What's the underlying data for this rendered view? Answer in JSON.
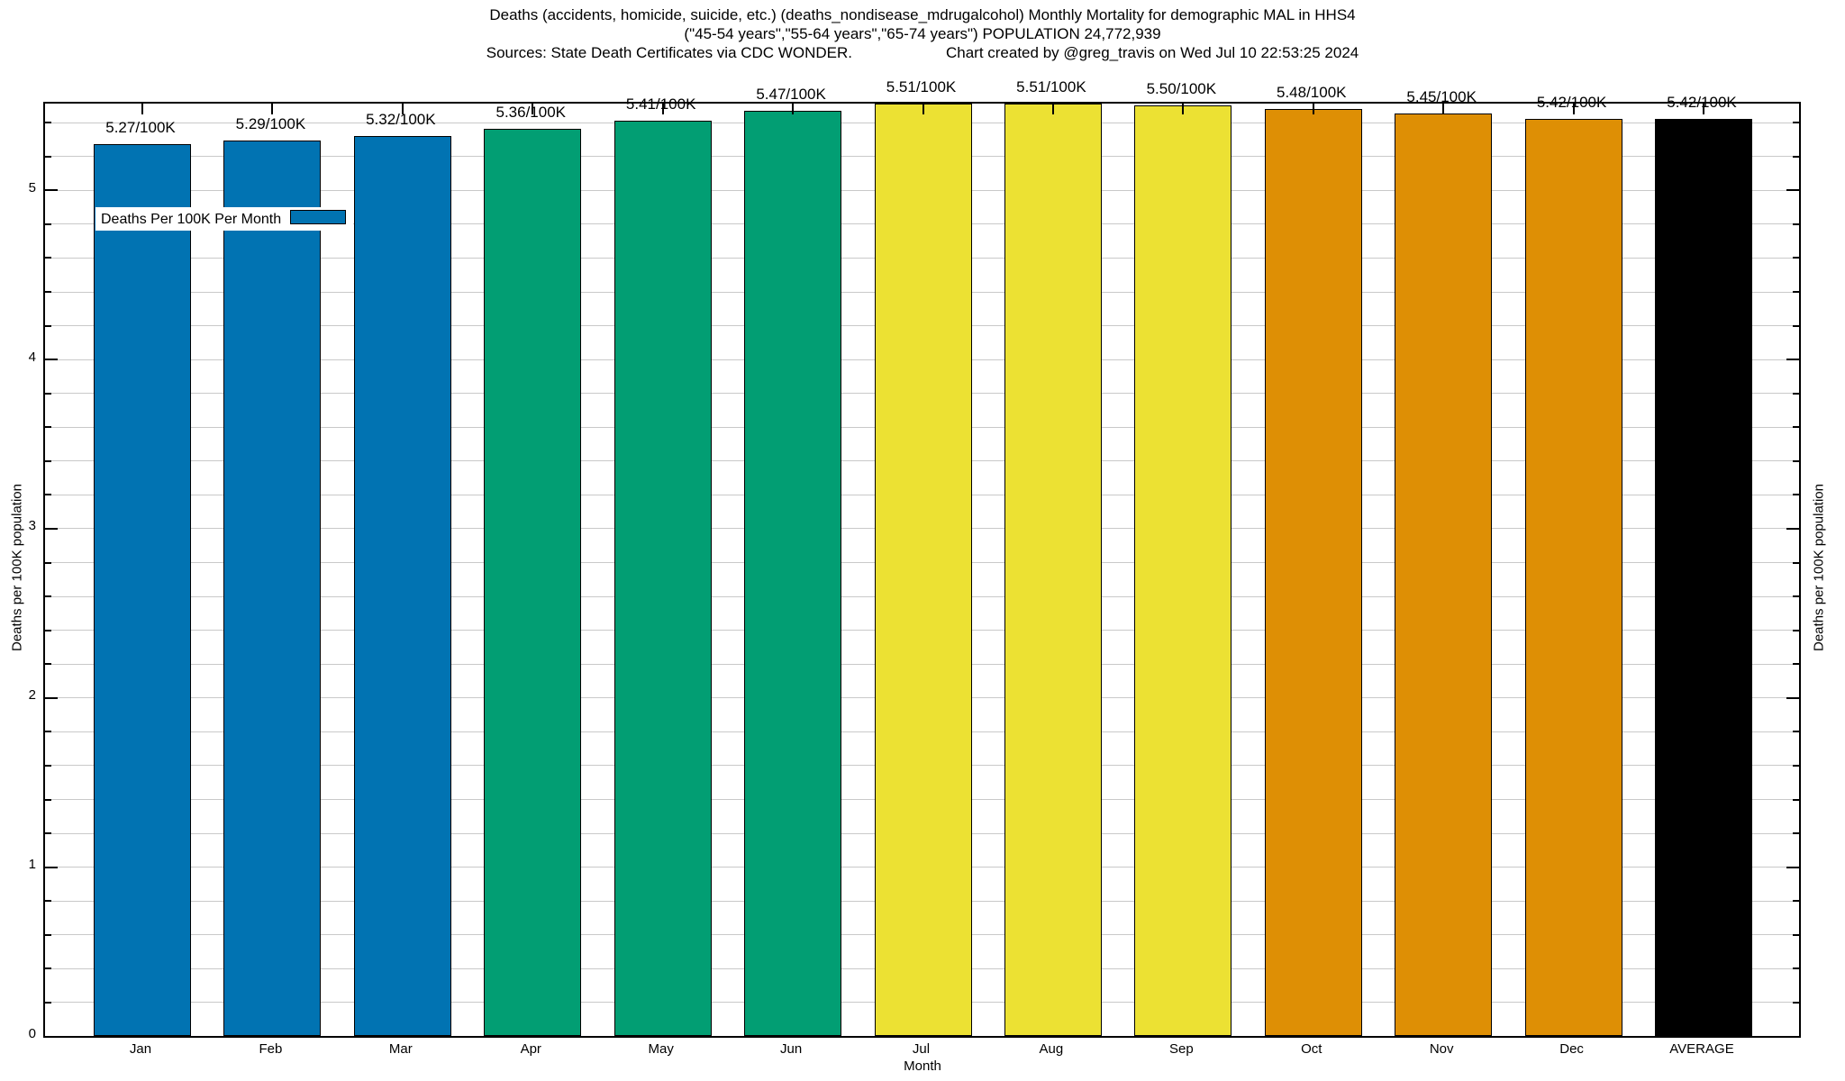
{
  "title": {
    "line1": "Deaths (accidents, homicide, suicide, etc.) (deaths_nondisease_mdrugalcohol) Monthly Mortality for demographic MAL in HHS4",
    "line2": "(\"45-54 years\",\"55-64 years\",\"65-74 years\") POPULATION 24,772,939",
    "line3_sources": "Sources: State Death Certificates via CDC WONDER.",
    "line3_credit": "Chart created by @greg_travis on Wed Jul 10 22:53:25 2024"
  },
  "legend": {
    "label": "Deaths Per 100K Per Month",
    "swatch_color": "#0173b2"
  },
  "axes": {
    "ylabel_left": "Deaths per 100K population",
    "ylabel_right": "Deaths per 100K population",
    "xlabel": "Month",
    "yticks": [
      0,
      1,
      2,
      3,
      4,
      5
    ],
    "minor_step": 0.2,
    "ylim": [
      0,
      5.51
    ],
    "grid_color": "#c9c9c9"
  },
  "chart_data": {
    "type": "bar",
    "title": "Deaths (accidents, homicide, suicide, etc.) (deaths_nondisease_mdrugalcohol) Monthly Mortality for demographic MAL in HHS4 (\"45-54 years\",\"55-64 years\",\"65-74 years\") POPULATION 24,772,939",
    "xlabel": "Month",
    "ylabel": "Deaths per 100K population",
    "ylim": [
      0,
      5.51
    ],
    "grid": true,
    "legend_position": "top-left",
    "categories": [
      "Jan",
      "Feb",
      "Mar",
      "Apr",
      "May",
      "Jun",
      "Jul",
      "Aug",
      "Sep",
      "Oct",
      "Nov",
      "Dec",
      "AVERAGE"
    ],
    "values": [
      5.27,
      5.29,
      5.32,
      5.36,
      5.41,
      5.47,
      5.51,
      5.51,
      5.5,
      5.48,
      5.45,
      5.42,
      5.42
    ],
    "bar_labels": [
      "5.27/100K",
      "5.29/100K",
      "5.32/100K",
      "5.36/100K",
      "5.41/100K",
      "5.47/100K",
      "5.51/100K",
      "5.51/100K",
      "5.50/100K",
      "5.48/100K",
      "5.45/100K",
      "5.42/100K",
      "5.42/100K"
    ],
    "bar_colors": [
      "#0173b2",
      "#0173b2",
      "#0173b2",
      "#029e73",
      "#029e73",
      "#029e73",
      "#ece133",
      "#ece133",
      "#ece133",
      "#de8f05",
      "#de8f05",
      "#de8f05",
      "#000000"
    ]
  }
}
